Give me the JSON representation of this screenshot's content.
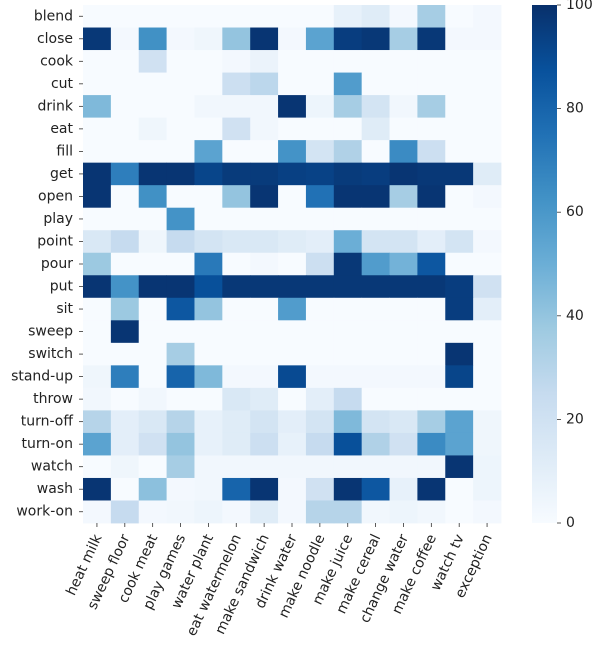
{
  "chart_data": {
    "type": "heatmap",
    "title": "",
    "xlabel": "",
    "ylabel": "",
    "rows": [
      "blend",
      "close",
      "cook",
      "cut",
      "drink",
      "eat",
      "fill",
      "get",
      "open",
      "play",
      "point",
      "pour",
      "put",
      "sit",
      "sweep",
      "switch",
      "stand-up",
      "throw",
      "turn-off",
      "turn-on",
      "watch",
      "wash",
      "work-on"
    ],
    "columns": [
      "heat milk",
      "sweep floor",
      "cook meat",
      "play games",
      "water plant",
      "eat watermelon",
      "make sandwich",
      "drink water",
      "make noodle",
      "make juice",
      "make cereal",
      "change water",
      "make coffee",
      "watch tv",
      "exception"
    ],
    "values": [
      [
        0,
        0,
        0,
        0,
        0,
        0,
        0,
        0,
        0,
        8,
        12,
        2,
        35,
        0,
        2
      ],
      [
        97,
        2,
        63,
        2,
        4,
        40,
        98,
        2,
        55,
        95,
        97,
        35,
        97,
        2,
        2
      ],
      [
        0,
        0,
        20,
        0,
        0,
        2,
        6,
        0,
        0,
        0,
        0,
        0,
        0,
        0,
        0
      ],
      [
        0,
        0,
        0,
        0,
        0,
        22,
        28,
        0,
        0,
        58,
        0,
        0,
        0,
        0,
        0
      ],
      [
        45,
        0,
        0,
        0,
        3,
        3,
        3,
        98,
        5,
        35,
        18,
        3,
        35,
        0,
        0
      ],
      [
        0,
        0,
        4,
        0,
        0,
        20,
        3,
        0,
        0,
        0,
        12,
        0,
        0,
        0,
        0
      ],
      [
        0,
        0,
        0,
        0,
        55,
        0,
        0,
        62,
        18,
        32,
        0,
        65,
        22,
        0,
        0
      ],
      [
        98,
        70,
        98,
        98,
        92,
        96,
        96,
        94,
        93,
        96,
        95,
        98,
        97,
        97,
        12
      ],
      [
        98,
        0,
        63,
        0,
        0,
        40,
        98,
        0,
        75,
        98,
        98,
        35,
        98,
        0,
        2
      ],
      [
        0,
        0,
        0,
        62,
        0,
        0,
        0,
        0,
        0,
        0,
        0,
        0,
        0,
        0,
        0
      ],
      [
        15,
        25,
        4,
        25,
        18,
        15,
        15,
        12,
        10,
        50,
        18,
        18,
        10,
        18,
        2
      ],
      [
        38,
        0,
        0,
        0,
        72,
        0,
        2,
        0,
        22,
        97,
        58,
        48,
        85,
        0,
        0
      ],
      [
        98,
        62,
        98,
        98,
        88,
        97,
        97,
        97,
        97,
        97,
        97,
        97,
        97,
        95,
        20
      ],
      [
        0,
        38,
        0,
        85,
        40,
        0,
        0,
        58,
        0,
        0,
        0,
        0,
        0,
        95,
        10
      ],
      [
        0,
        98,
        0,
        0,
        0,
        0,
        0,
        0,
        0,
        0,
        0,
        0,
        0,
        0,
        0
      ],
      [
        0,
        0,
        0,
        35,
        0,
        0,
        0,
        0,
        0,
        0,
        0,
        0,
        0,
        98,
        0
      ],
      [
        4,
        70,
        0,
        80,
        45,
        2,
        2,
        90,
        2,
        2,
        2,
        2,
        2,
        92,
        0
      ],
      [
        3,
        0,
        3,
        0,
        0,
        15,
        12,
        0,
        10,
        25,
        0,
        0,
        0,
        0,
        0
      ],
      [
        30,
        10,
        15,
        30,
        8,
        12,
        18,
        10,
        18,
        45,
        18,
        15,
        35,
        55,
        4
      ],
      [
        55,
        10,
        20,
        40,
        8,
        12,
        22,
        8,
        25,
        88,
        32,
        20,
        65,
        55,
        4
      ],
      [
        0,
        4,
        0,
        35,
        3,
        3,
        3,
        3,
        3,
        3,
        3,
        3,
        3,
        98,
        5
      ],
      [
        98,
        0,
        42,
        2,
        3,
        80,
        98,
        2,
        20,
        98,
        85,
        8,
        98,
        0,
        5
      ],
      [
        2,
        25,
        2,
        3,
        5,
        2,
        12,
        2,
        30,
        30,
        3,
        5,
        3,
        0,
        2
      ]
    ],
    "vmin": 0,
    "vmax": 100,
    "colormap": "Blues",
    "colors": {
      "low": "#f7fbff",
      "mid": "#6aaed6",
      "high": "#08306b"
    },
    "colorbar": {
      "ticks": [
        0,
        20,
        40,
        60,
        80,
        100
      ],
      "tick_labels": [
        "0",
        "20",
        "40",
        "60",
        "80",
        "100"
      ],
      "position": "right"
    }
  }
}
